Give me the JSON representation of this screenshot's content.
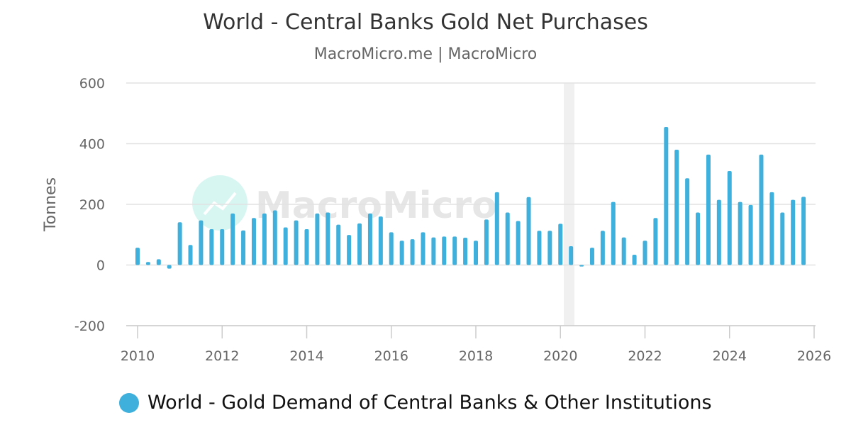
{
  "chart_data": {
    "type": "bar",
    "title": "World - Central Banks Gold Net Purchases",
    "subtitle": "MacroMicro.me | MacroMicro",
    "ylabel": "Tonnes",
    "xlabel": "",
    "ylim": [
      -200,
      600
    ],
    "xlim": [
      2010,
      2026.0
    ],
    "yticks": [
      -200,
      0,
      200,
      400,
      600
    ],
    "xticks": [
      2010,
      2012,
      2014,
      2016,
      2018,
      2020,
      2022,
      2024,
      2026
    ],
    "grid": true,
    "legend_position": "bottom-left",
    "watermark": "MacroMicro",
    "color": "#3fb0dc",
    "recession_band": [
      2020.08,
      2020.33
    ],
    "series": [
      {
        "name": "World - Gold Demand of Central Banks & Other Institutions",
        "x": [
          2010.0,
          2010.25,
          2010.5,
          2010.75,
          2011.0,
          2011.25,
          2011.5,
          2011.75,
          2012.0,
          2012.25,
          2012.5,
          2012.75,
          2013.0,
          2013.25,
          2013.5,
          2013.75,
          2014.0,
          2014.25,
          2014.5,
          2014.75,
          2015.0,
          2015.25,
          2015.5,
          2015.75,
          2016.0,
          2016.25,
          2016.5,
          2016.75,
          2017.0,
          2017.25,
          2017.5,
          2017.75,
          2018.0,
          2018.25,
          2018.5,
          2018.75,
          2019.0,
          2019.25,
          2019.5,
          2019.75,
          2020.0,
          2020.25,
          2020.5,
          2020.75,
          2021.0,
          2021.25,
          2021.5,
          2021.75,
          2022.0,
          2022.25,
          2022.5,
          2022.75,
          2023.0,
          2023.25,
          2023.5,
          2023.75,
          2024.0,
          2024.25,
          2024.5,
          2024.75,
          2025.0,
          2025.25,
          2025.5,
          2025.75
        ],
        "values": [
          57,
          10,
          19,
          -12,
          141,
          66,
          147,
          118,
          118,
          170,
          114,
          155,
          170,
          180,
          124,
          147,
          118,
          170,
          173,
          133,
          99,
          137,
          170,
          160,
          108,
          80,
          85,
          108,
          91,
          94,
          94,
          90,
          80,
          150,
          240,
          173,
          145,
          224,
          113,
          113,
          136,
          62,
          -5,
          57,
          113,
          208,
          91,
          34,
          80,
          155,
          455,
          380,
          286,
          173,
          364,
          215,
          310,
          208,
          198,
          364,
          240,
          173,
          215,
          225
        ]
      }
    ]
  }
}
